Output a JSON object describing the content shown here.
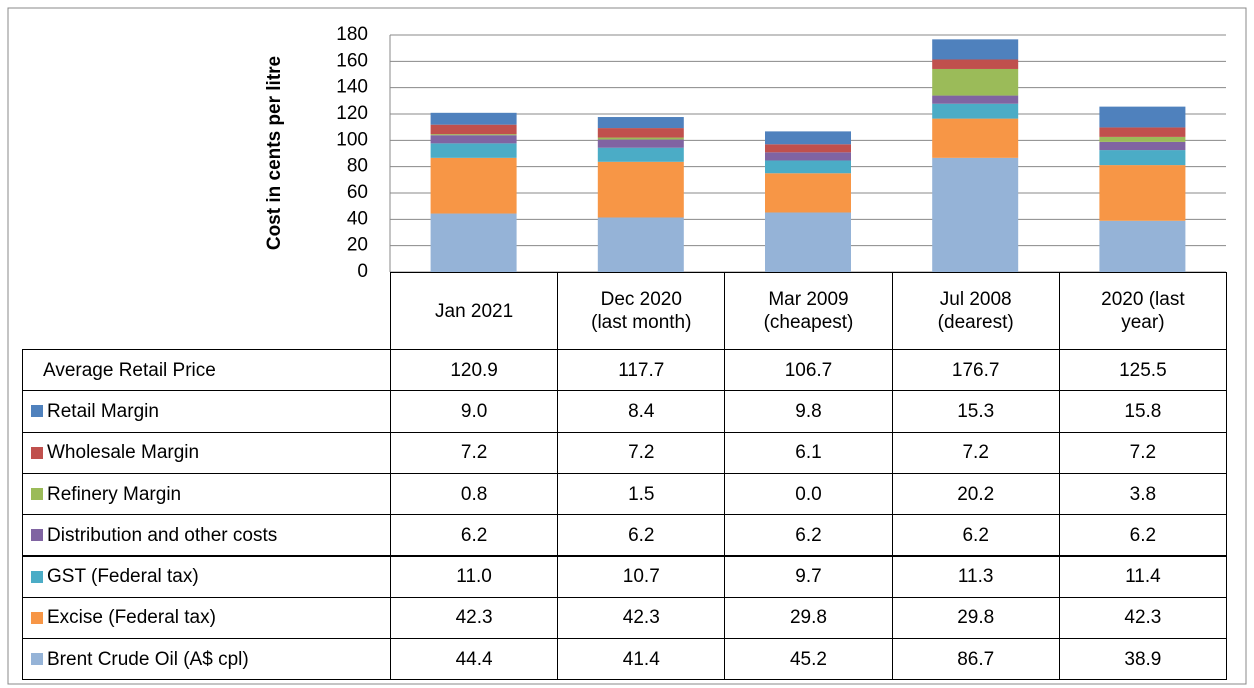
{
  "chart_data": {
    "type": "stacked_bar",
    "ylabel": "Cost in cents per litre",
    "categories": [
      "Jan 2021",
      "Dec 2020\n(last month)",
      "Mar 2009\n(cheapest)",
      "Jul 2008\n(dearest)",
      "2020 (last\nyear)"
    ],
    "ylim": [
      0,
      180
    ],
    "yticks": [
      0,
      20,
      40,
      60,
      80,
      100,
      120,
      140,
      160,
      180
    ],
    "grid": true,
    "totals": {
      "name": "Average Retail Price",
      "values": [
        120.9,
        117.7,
        106.7,
        176.7,
        125.5
      ]
    },
    "series": [
      {
        "name": "Retail Margin",
        "color": "#4f81bd",
        "values": [
          9.0,
          8.4,
          9.8,
          15.3,
          15.8
        ],
        "value_labels": [
          "9.0",
          "8.4",
          "9.8",
          "15.3",
          "15.8"
        ]
      },
      {
        "name": "Wholesale Margin",
        "color": "#c0504d",
        "values": [
          7.2,
          7.2,
          6.1,
          7.2,
          7.2
        ],
        "value_labels": [
          "7.2",
          "7.2",
          "6.1",
          "7.2",
          "7.2"
        ]
      },
      {
        "name": "Refinery Margin",
        "color": "#9bbb59",
        "values": [
          0.8,
          1.5,
          0.0,
          20.2,
          3.8
        ],
        "value_labels": [
          "0.8",
          "1.5",
          "0.0",
          "20.2",
          "3.8"
        ]
      },
      {
        "name": "Distribution and other costs",
        "color": "#8064a2",
        "values": [
          6.2,
          6.2,
          6.2,
          6.2,
          6.2
        ],
        "value_labels": [
          "6.2",
          "6.2",
          "6.2",
          "6.2",
          "6.2"
        ]
      },
      {
        "name": "GST (Federal tax)",
        "color": "#4bacc6",
        "values": [
          11.0,
          10.7,
          9.7,
          11.3,
          11.4
        ],
        "value_labels": [
          "11.0",
          "10.7",
          "9.7",
          "11.3",
          "11.4"
        ]
      },
      {
        "name": "Excise (Federal tax)",
        "color": "#f79646",
        "values": [
          42.3,
          42.3,
          29.8,
          29.8,
          42.3
        ],
        "value_labels": [
          "42.3",
          "42.3",
          "29.8",
          "29.8",
          "42.3"
        ]
      },
      {
        "name": "Brent Crude Oil (A$ cpl)",
        "color": "#95b3d7",
        "values": [
          44.4,
          41.4,
          45.2,
          86.7,
          38.9
        ],
        "value_labels": [
          "44.4",
          "41.4",
          "45.2",
          "86.7",
          "38.9"
        ]
      }
    ]
  }
}
